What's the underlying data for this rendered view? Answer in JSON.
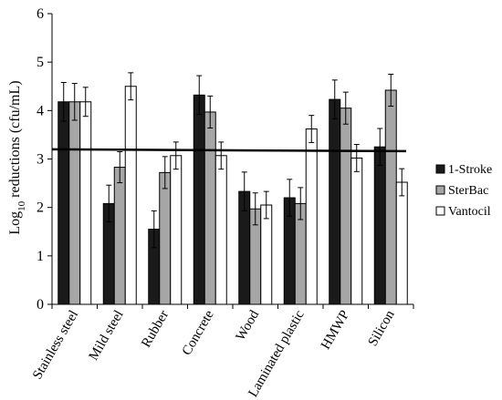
{
  "chart_data": {
    "type": "bar",
    "categories": [
      "Stainless steel",
      "Mild steel",
      "Rubber",
      "Concrete",
      "Wood",
      "Laminated plastic",
      "HMWP",
      "Silicon"
    ],
    "series": [
      {
        "name": "1-Stroke",
        "color": "#1a1a1a",
        "values": [
          4.18,
          2.08,
          1.55,
          4.32,
          2.33,
          2.2,
          4.23,
          3.25
        ],
        "errors": [
          0.4,
          0.38,
          0.38,
          0.4,
          0.4,
          0.38,
          0.4,
          0.38
        ]
      },
      {
        "name": "SterBac",
        "color": "#a6a6a6",
        "values": [
          4.18,
          2.83,
          2.72,
          3.97,
          1.97,
          2.08,
          4.05,
          4.42
        ],
        "errors": [
          0.38,
          0.32,
          0.33,
          0.33,
          0.33,
          0.33,
          0.33,
          0.33
        ]
      },
      {
        "name": "Vantocil",
        "color": "#ffffff",
        "values": [
          4.18,
          4.5,
          3.07,
          3.07,
          2.05,
          3.62,
          3.02,
          2.52
        ],
        "errors": [
          0.3,
          0.28,
          0.28,
          0.28,
          0.28,
          0.28,
          0.28,
          0.28
        ]
      }
    ],
    "reference_line": 3.18,
    "ylabel": "Log10 reductions (cfu/mL)",
    "ylabel_main": "Log",
    "ylabel_sub": "10",
    "ylabel_rest": " reductions (cfu/mL)",
    "ylim": [
      0,
      6
    ],
    "yticks": [
      "0",
      "1",
      "2",
      "3",
      "4",
      "5",
      "6"
    ],
    "legend_position": "right",
    "grid": false
  }
}
